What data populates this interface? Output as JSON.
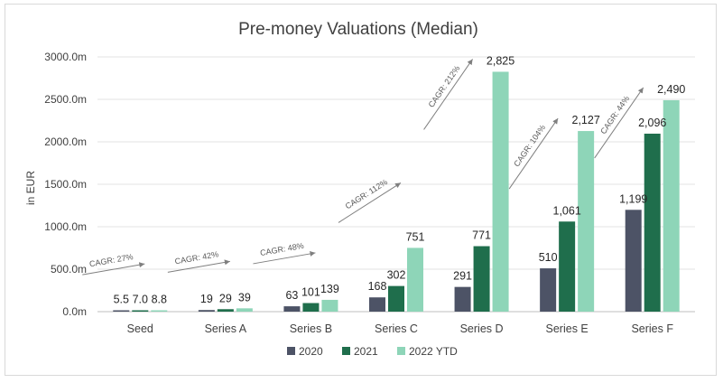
{
  "chart_data": {
    "type": "bar",
    "title": "Pre-money Valuations (Median)",
    "xlabel": "",
    "ylabel": "in EUR",
    "ylim": [
      0,
      3000
    ],
    "yticks": [
      0,
      500,
      1000,
      1500,
      2000,
      2500,
      3000
    ],
    "ytick_labels": [
      "0.0m",
      "500.0m",
      "1000.0m",
      "1500.0m",
      "2000.0m",
      "2500.0m",
      "3000.0m"
    ],
    "grid": true,
    "legend_position": "bottom",
    "categories": [
      "Seed",
      "Series A",
      "Series B",
      "Series C",
      "Series D",
      "Series E",
      "Series F"
    ],
    "series": [
      {
        "name": "2020",
        "color": "#4d5366",
        "values": [
          5.5,
          19,
          63,
          168,
          291,
          510,
          1199
        ],
        "labels": [
          "5.5",
          "19",
          "63",
          "168",
          "291",
          "510",
          "1,199"
        ]
      },
      {
        "name": "2021",
        "color": "#1f6e4c",
        "values": [
          7.0,
          29,
          101,
          302,
          771,
          1061,
          2096
        ],
        "labels": [
          "7.0",
          "29",
          "101",
          "302",
          "771",
          "1,061",
          "2,096"
        ]
      },
      {
        "name": "2022 YTD",
        "color": "#8ed5b8",
        "values": [
          8.8,
          39,
          139,
          751,
          2825,
          2127,
          2490
        ],
        "labels": [
          "8.8",
          "39",
          "139",
          "751",
          "2,825",
          "2,127",
          "2,490"
        ]
      }
    ],
    "annotations": [
      "CAGR: 27%",
      "CAGR: 42%",
      "CAGR: 48%",
      "CAGR: 112%",
      "CAGR: 212%",
      "CAGR: 104%",
      "CAGR: 44%"
    ]
  }
}
